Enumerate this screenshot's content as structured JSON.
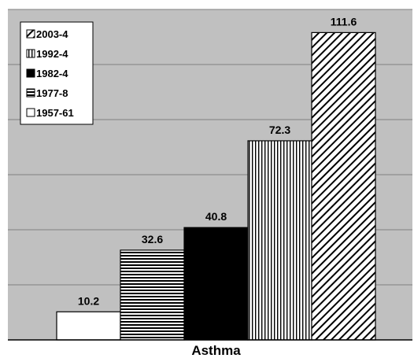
{
  "chart_data": {
    "type": "bar",
    "categories": [
      "Asthma"
    ],
    "series": [
      {
        "name": "1957-61",
        "values": [
          10.2
        ],
        "pattern": "solid-white"
      },
      {
        "name": "1977-8",
        "values": [
          32.6
        ],
        "pattern": "horizontal-lines"
      },
      {
        "name": "1982-4",
        "values": [
          40.8
        ],
        "pattern": "solid-black"
      },
      {
        "name": "1992-4",
        "values": [
          72.3
        ],
        "pattern": "vertical-lines"
      },
      {
        "name": "2003-4",
        "values": [
          111.6
        ],
        "pattern": "diagonal-lines"
      }
    ],
    "legend_order": [
      "2003-4",
      "1992-4",
      "1982-4",
      "1977-8",
      "1957-61"
    ],
    "legend_position": "top-left",
    "ylim": [
      0,
      120
    ],
    "grid": true,
    "gridlines_y": [
      20,
      40,
      60,
      80,
      100,
      120
    ],
    "plot_background": "#c0c0c0",
    "gridline_color": "#808080",
    "title": "",
    "xlabel": "",
    "ylabel": ""
  }
}
